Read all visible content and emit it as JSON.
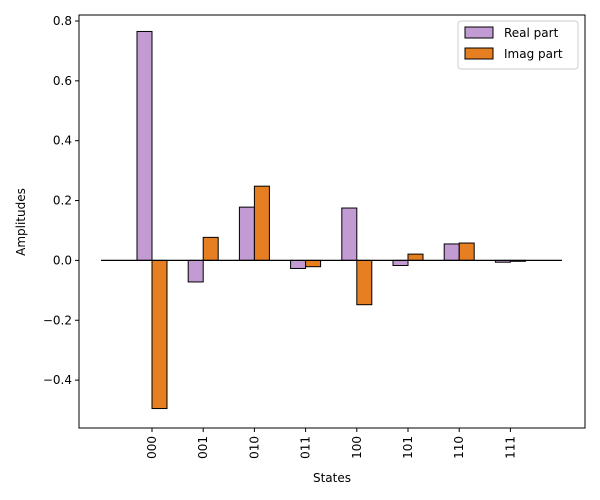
{
  "chart_data": {
    "type": "bar",
    "title": "",
    "xlabel": "States",
    "ylabel": "Amplitudes",
    "categories": [
      "000",
      "001",
      "010",
      "011",
      "100",
      "101",
      "110",
      "111"
    ],
    "series": [
      {
        "name": "Real part",
        "color": "#c39bd3",
        "values": [
          0.765,
          -0.072,
          0.178,
          -0.027,
          0.175,
          -0.017,
          0.055,
          -0.006
        ]
      },
      {
        "name": "Imag part",
        "color": "#e67e22",
        "values": [
          -0.495,
          0.077,
          0.248,
          -0.021,
          -0.148,
          0.021,
          0.058,
          -0.003
        ]
      }
    ],
    "ylim": [
      -0.56,
      0.82
    ],
    "yticks": [
      "−0.4",
      "−0.2",
      "0.0",
      "0.2",
      "0.4",
      "0.6",
      "0.8"
    ],
    "legend_position": "top-right",
    "grid": false
  }
}
